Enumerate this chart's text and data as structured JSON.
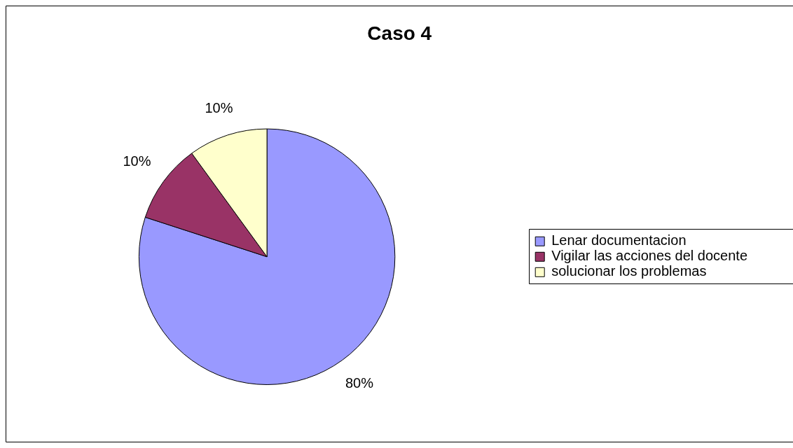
{
  "chart_data": {
    "type": "pie",
    "title": "Caso 4",
    "categories": [
      "Lenar documentacion",
      "Vigilar las acciones del docente",
      "solucionar los problemas"
    ],
    "values": [
      80,
      10,
      10
    ],
    "colors": [
      "#9999ff",
      "#993366",
      "#ffffcc"
    ],
    "value_labels": [
      "80%",
      "10%",
      "10%"
    ],
    "legend": "right"
  }
}
